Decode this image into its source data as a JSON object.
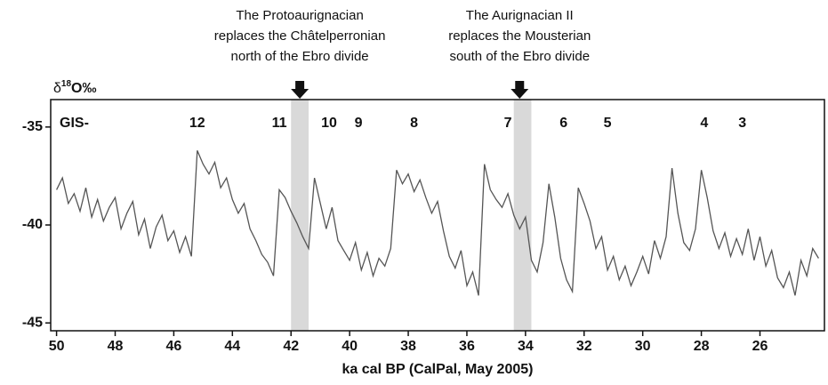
{
  "chart_data": {
    "type": "line",
    "y_label": {
      "base": "δ",
      "sup": "18",
      "rest": "O‰"
    },
    "x_label": "ka cal BP (CalPal, May 2005)",
    "xlim": [
      50.2,
      23.8
    ],
    "xticks": [
      50,
      48,
      46,
      44,
      42,
      40,
      38,
      36,
      34,
      32,
      30,
      28,
      26
    ],
    "ylim": [
      -45.4,
      -33.6
    ],
    "yticks": [
      -35,
      -40,
      -45
    ],
    "annotations": [
      {
        "lines": [
          "The Protoaurignacian",
          "replaces the Châtelperronian",
          "north of the Ebro divide"
        ],
        "x": 41.7
      },
      {
        "lines": [
          "The Aurignacian II",
          "replaces the Mousterian",
          "south of the Ebro divide"
        ],
        "x": 34.2
      }
    ],
    "bands": [
      [
        42.0,
        41.4
      ],
      [
        34.4,
        33.8
      ]
    ],
    "band_color": "#d9d9d9",
    "gis_prefix": "GIS-",
    "gis_labels": [
      {
        "label": "12",
        "x": 45.2
      },
      {
        "label": "11",
        "x": 42.4
      },
      {
        "label": "10",
        "x": 40.7
      },
      {
        "label": "9",
        "x": 39.7
      },
      {
        "label": "8",
        "x": 37.8
      },
      {
        "label": "7",
        "x": 34.6
      },
      {
        "label": "6",
        "x": 32.7
      },
      {
        "label": "5",
        "x": 31.2
      },
      {
        "label": "4",
        "x": 27.9
      },
      {
        "label": "3",
        "x": 26.6
      }
    ],
    "series": [
      {
        "color": "#555555",
        "x": [
          50,
          49.8,
          49.6,
          49.4,
          49.2,
          49,
          48.8,
          48.6,
          48.4,
          48.2,
          48,
          47.8,
          47.6,
          47.4,
          47.2,
          47,
          46.8,
          46.6,
          46.4,
          46.2,
          46,
          45.8,
          45.6,
          45.4,
          45.2,
          45,
          44.8,
          44.6,
          44.4,
          44.2,
          44,
          43.8,
          43.6,
          43.4,
          43.2,
          43,
          42.8,
          42.6,
          42.4,
          42.2,
          42,
          41.8,
          41.6,
          41.4,
          41.2,
          41,
          40.8,
          40.6,
          40.4,
          40.2,
          40,
          39.8,
          39.6,
          39.4,
          39.2,
          39,
          38.8,
          38.6,
          38.4,
          38.2,
          38,
          37.8,
          37.6,
          37.4,
          37.2,
          37,
          36.8,
          36.6,
          36.4,
          36.2,
          36,
          35.8,
          35.6,
          35.4,
          35.2,
          35,
          34.8,
          34.6,
          34.4,
          34.2,
          34,
          33.8,
          33.6,
          33.4,
          33.2,
          33,
          32.8,
          32.6,
          32.4,
          32.2,
          32,
          31.8,
          31.6,
          31.4,
          31.2,
          31,
          30.8,
          30.6,
          30.4,
          30.2,
          30,
          29.8,
          29.6,
          29.4,
          29.2,
          29,
          28.8,
          28.6,
          28.4,
          28.2,
          28,
          27.8,
          27.6,
          27.4,
          27.2,
          27,
          26.8,
          26.6,
          26.4,
          26.2,
          26,
          25.8,
          25.6,
          25.4,
          25.2,
          25,
          24.8,
          24.6,
          24.4,
          24.2,
          24
        ],
        "values": [
          -38.2,
          -37.6,
          -38.9,
          -38.4,
          -39.3,
          -38.1,
          -39.6,
          -38.7,
          -39.8,
          -39.1,
          -38.6,
          -40.2,
          -39.4,
          -38.8,
          -40.5,
          -39.7,
          -41.2,
          -40.1,
          -39.5,
          -40.8,
          -40.3,
          -41.4,
          -40.6,
          -41.6,
          -36.2,
          -36.9,
          -37.4,
          -36.8,
          -38.1,
          -37.6,
          -38.7,
          -39.4,
          -38.9,
          -40.2,
          -40.8,
          -41.5,
          -41.9,
          -42.6,
          -38.2,
          -38.6,
          -39.3,
          -39.9,
          -40.6,
          -41.2,
          -37.6,
          -38.9,
          -40.2,
          -39.1,
          -40.8,
          -41.3,
          -41.8,
          -40.9,
          -42.3,
          -41.4,
          -42.6,
          -41.7,
          -42.1,
          -41.2,
          -37.2,
          -37.9,
          -37.4,
          -38.3,
          -37.7,
          -38.6,
          -39.4,
          -38.8,
          -40.3,
          -41.6,
          -42.2,
          -41.3,
          -43.1,
          -42.4,
          -43.6,
          -36.9,
          -38.2,
          -38.7,
          -39.1,
          -38.4,
          -39.5,
          -40.2,
          -39.6,
          -41.8,
          -42.4,
          -40.9,
          -37.9,
          -39.6,
          -41.7,
          -42.8,
          -43.4,
          -38.1,
          -38.9,
          -39.8,
          -41.2,
          -40.6,
          -42.3,
          -41.6,
          -42.8,
          -42.1,
          -43.1,
          -42.4,
          -41.6,
          -42.5,
          -40.8,
          -41.7,
          -40.6,
          -37.1,
          -39.4,
          -40.9,
          -41.3,
          -40.2,
          -37.2,
          -38.6,
          -40.3,
          -41.2,
          -40.4,
          -41.6,
          -40.7,
          -41.5,
          -40.2,
          -41.8,
          -40.6,
          -42.1,
          -41.3,
          -42.7,
          -43.2,
          -42.4,
          -43.6,
          -41.8,
          -42.6,
          -41.2,
          -41.7
        ]
      }
    ]
  }
}
